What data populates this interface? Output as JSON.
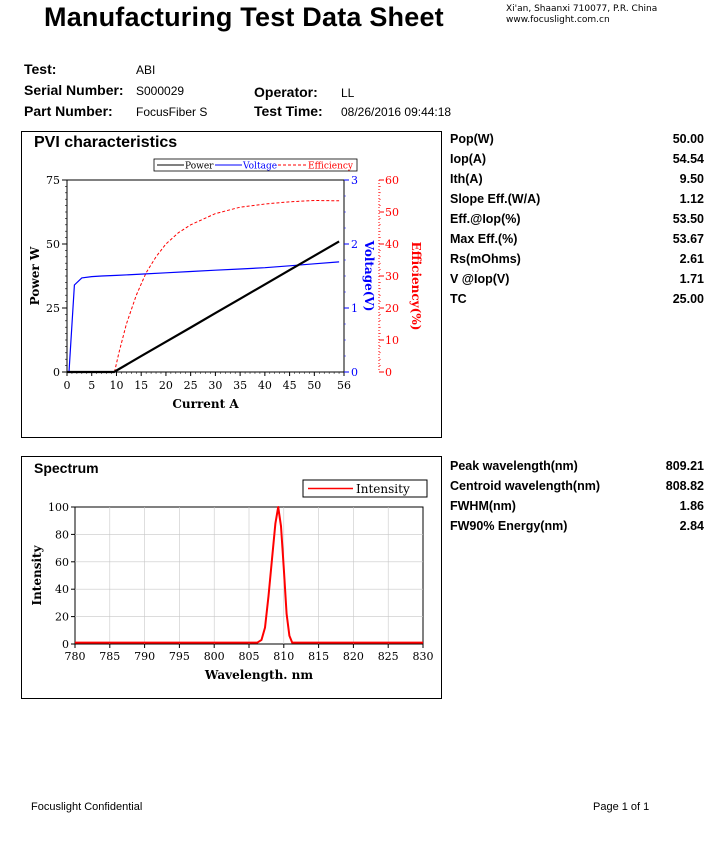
{
  "header": {
    "title": "Manufacturing Test Data Sheet",
    "address_line1": "Xi'an, Shaanxi 710077, P.R. China",
    "address_line2": "www.focuslight.com.cn"
  },
  "info": {
    "test_label": "Test:",
    "test_value": "ABI",
    "serial_label": "Serial Number:",
    "serial_value": "S000029",
    "part_label": "Part Number:",
    "part_value": "FocusFiber S",
    "operator_label": "Operator:",
    "operator_value": "LL",
    "time_label": "Test Time:",
    "time_value": "08/26/2016 09:44:18"
  },
  "pvi_params": [
    {
      "name": "Pop(W)",
      "value": "50.00"
    },
    {
      "name": "Iop(A)",
      "value": "54.54"
    },
    {
      "name": "Ith(A)",
      "value": "9.50"
    },
    {
      "name": "Slope Eff.(W/A)",
      "value": "1.12"
    },
    {
      "name": "Eff.@Iop(%)",
      "value": "53.50"
    },
    {
      "name": "Max Eff.(%)",
      "value": "53.67"
    },
    {
      "name": "Rs(mOhms)",
      "value": "2.61"
    },
    {
      "name": "V @Iop(V)",
      "value": "1.71"
    },
    {
      "name": "TC",
      "value": "25.00"
    }
  ],
  "spectrum_params": [
    {
      "name": "Peak wavelength(nm)",
      "value": "809.21"
    },
    {
      "name": "Centroid wavelength(nm)",
      "value": "808.82"
    },
    {
      "name": "FWHM(nm)",
      "value": "1.86"
    },
    {
      "name": "FW90% Energy(nm)",
      "value": "2.84"
    }
  ],
  "footer": {
    "left": "Focuslight Confidential",
    "right": "Page 1 of 1"
  },
  "colors": {
    "power": "#000000",
    "voltage": "#0000ff",
    "efficiency": "#ff0000",
    "intensity": "#ff0000"
  },
  "chart_data": [
    {
      "type": "line",
      "title": "PVI characteristics",
      "xlabel": "Current A",
      "xlim": [
        0,
        56
      ],
      "x_ticks": [
        0,
        5,
        10,
        15,
        20,
        25,
        30,
        35,
        40,
        45,
        50,
        56
      ],
      "ylabel": "Power W",
      "ylim": [
        0,
        75
      ],
      "y_ticks": [
        0,
        25,
        50,
        75
      ],
      "y2label": "Voltage(V)",
      "y2lim": [
        0,
        3
      ],
      "y2_ticks": [
        0,
        1,
        2,
        3
      ],
      "y3label": "Efficiency(%)",
      "y3lim": [
        0,
        60
      ],
      "y3_ticks": [
        0,
        10,
        20,
        30,
        40,
        50,
        60
      ],
      "legend": [
        "Power",
        "Voltage",
        "Efficiency"
      ],
      "legend_position": "top-right",
      "series": [
        {
          "name": "Power",
          "axis": "left",
          "style": "solid",
          "x": [
            0,
            9.5,
            15,
            20,
            25,
            30,
            35,
            40,
            45,
            50,
            55
          ],
          "y": [
            0,
            0,
            6.2,
            11.8,
            17.4,
            23.0,
            28.6,
            34.2,
            39.8,
            45.4,
            51.0
          ]
        },
        {
          "name": "Voltage",
          "axis": "right",
          "style": "solid",
          "x": [
            0,
            0.4,
            1.5,
            3,
            5,
            7,
            10,
            15,
            20,
            25,
            30,
            35,
            40,
            45,
            50,
            55
          ],
          "y": [
            0,
            0,
            1.36,
            1.47,
            1.49,
            1.5,
            1.51,
            1.53,
            1.55,
            1.57,
            1.59,
            1.61,
            1.63,
            1.66,
            1.69,
            1.72
          ]
        },
        {
          "name": "Efficiency",
          "axis": "right2",
          "style": "dashed",
          "x": [
            9.6,
            10.5,
            12,
            14,
            16,
            18,
            20,
            22.5,
            25,
            30,
            35,
            40,
            45,
            50,
            55
          ],
          "y": [
            0,
            6,
            15,
            24,
            31,
            36,
            40,
            43.5,
            46,
            49.5,
            51.5,
            52.5,
            53.2,
            53.6,
            53.5
          ]
        }
      ]
    },
    {
      "type": "line",
      "title": "Spectrum",
      "xlabel": "Wavelength. nm",
      "xlim": [
        780,
        830
      ],
      "x_ticks": [
        780,
        785,
        790,
        795,
        800,
        805,
        810,
        815,
        820,
        825,
        830
      ],
      "ylabel": "Intensity",
      "ylim": [
        0,
        100
      ],
      "y_ticks": [
        0,
        20,
        40,
        60,
        80,
        100
      ],
      "legend": [
        "Intensity"
      ],
      "legend_position": "top-right",
      "series": [
        {
          "name": "Intensity",
          "x": [
            780,
            806.2,
            806.8,
            807.3,
            807.8,
            808.3,
            808.8,
            809.2,
            809.6,
            810.0,
            810.4,
            810.8,
            811.2,
            830
          ],
          "y": [
            1,
            1,
            3,
            12,
            35,
            62,
            88,
            100,
            86,
            55,
            22,
            6,
            1,
            1
          ]
        }
      ]
    }
  ]
}
